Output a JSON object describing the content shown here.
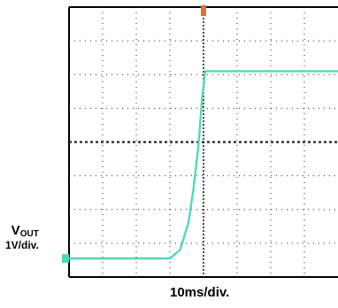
{
  "chart_data": {
    "type": "line",
    "title": "",
    "ylabel_main": "V",
    "ylabel_sub": "OUT",
    "ylabel_scale": "1V/div.",
    "xlabel": "10ms/div.",
    "grid": true,
    "x_divisions": 8,
    "y_divisions": 8,
    "xlim": [
      0,
      8
    ],
    "ylim": [
      0,
      8
    ],
    "trigger_marker": "T",
    "ground_marker": "1",
    "colors": {
      "trace": "#4fd9b8",
      "grid": "#222222",
      "trigger": "#e07030"
    },
    "series": [
      {
        "x": [
          -0.2,
          3.0,
          3.3,
          3.55,
          3.7,
          3.85,
          3.95,
          4.05,
          8.1
        ],
        "values": [
          0.55,
          0.55,
          0.8,
          1.6,
          2.6,
          3.9,
          5.2,
          6.1,
          6.1
        ]
      }
    ]
  }
}
